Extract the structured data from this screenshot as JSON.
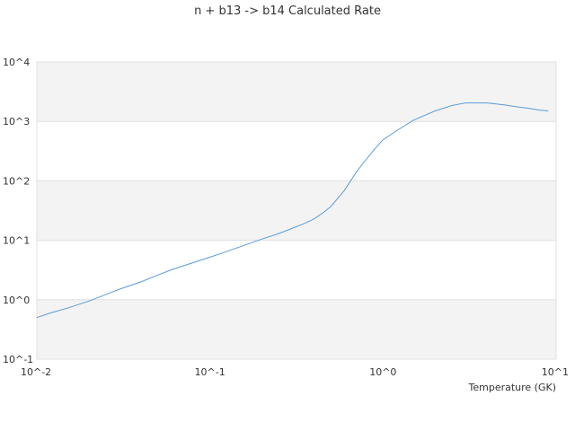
{
  "chart_data": {
    "type": "line",
    "title": "n + b13 -> b14 Calculated Rate",
    "xlabel": "Temperature (GK)",
    "ylabel": "",
    "x_scale": "log",
    "y_scale": "log",
    "xlim": [
      0.01,
      10
    ],
    "ylim": [
      0.1,
      10000
    ],
    "x_ticks": [
      "10^-2",
      "10^-1",
      "10^0",
      "10^1"
    ],
    "y_ticks": [
      "10^-1",
      "10^0",
      "10^1",
      "10^2",
      "10^3",
      "10^4"
    ],
    "grid": "alternating horizontal bands",
    "legend": "none",
    "series": [
      {
        "color": "#5b9bd5",
        "x": [
          0.01,
          0.012,
          0.015,
          0.02,
          0.03,
          0.04,
          0.05,
          0.06,
          0.08,
          0.1,
          0.12,
          0.15,
          0.2,
          0.25,
          0.3,
          0.35,
          0.4,
          0.45,
          0.5,
          0.6,
          0.7,
          0.8,
          0.9,
          1.0,
          1.2,
          1.5,
          2.0,
          2.5,
          3.0,
          4.0,
          5.0,
          6.0,
          7.0,
          8.0,
          9.0
        ],
        "y": [
          0.5,
          0.6,
          0.72,
          0.95,
          1.5,
          2.0,
          2.6,
          3.2,
          4.2,
          5.2,
          6.2,
          7.8,
          10.5,
          13.0,
          16.0,
          19.0,
          23.0,
          29.0,
          37.0,
          70.0,
          140.0,
          230.0,
          350.0,
          490.0,
          700.0,
          1050.0,
          1500.0,
          1850.0,
          2050.0,
          2050.0,
          1900.0,
          1750.0,
          1650.0,
          1550.0,
          1500.0
        ]
      }
    ]
  }
}
